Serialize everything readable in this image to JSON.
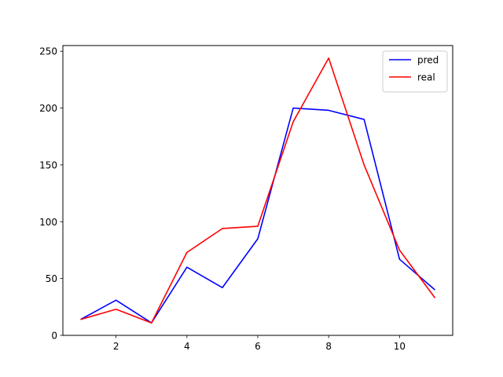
{
  "chart_data": {
    "type": "line",
    "x": [
      1,
      2,
      3,
      4,
      5,
      6,
      7,
      8,
      9,
      10,
      11
    ],
    "series": [
      {
        "name": "pred",
        "color": "#0000ff",
        "values": [
          14,
          31,
          11,
          60,
          42,
          85,
          200,
          198,
          190,
          67,
          40
        ]
      },
      {
        "name": "real",
        "color": "#ff0000",
        "values": [
          14,
          23,
          11,
          73,
          94,
          96,
          188,
          244,
          150,
          75,
          33
        ]
      }
    ],
    "xlim": [
      0.5,
      11.5
    ],
    "ylim": [
      0,
      255
    ],
    "xticks": [
      2,
      4,
      6,
      8,
      10
    ],
    "yticks": [
      0,
      50,
      100,
      150,
      200,
      250
    ],
    "xtick_labels": [
      "2",
      "4",
      "6",
      "8",
      "10"
    ],
    "ytick_labels": [
      "0",
      "50",
      "100",
      "150",
      "200",
      "250"
    ],
    "title": "",
    "xlabel": "",
    "ylabel": "",
    "grid": false,
    "legend_position": "upper right"
  }
}
